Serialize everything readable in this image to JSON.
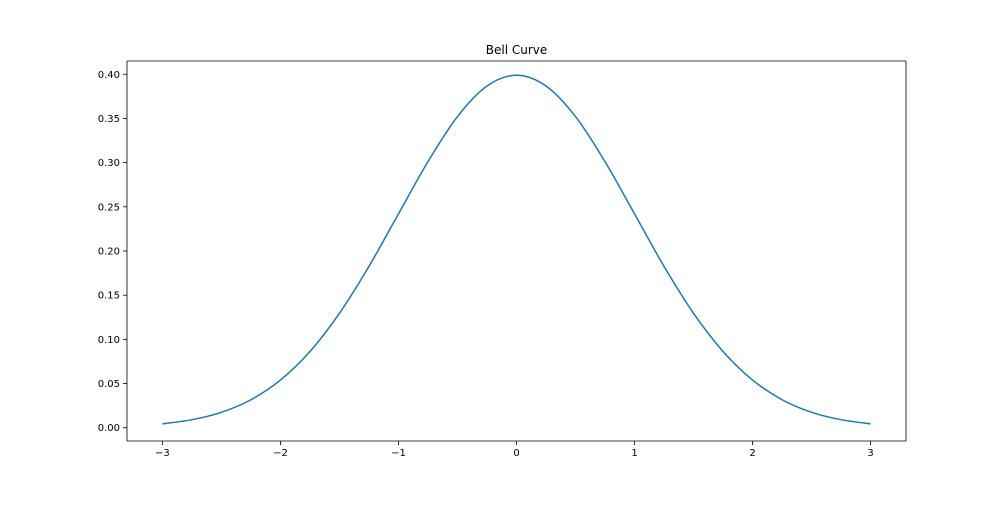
{
  "chart_data": {
    "type": "line",
    "title": "Bell Curve",
    "xlabel": "",
    "ylabel": "",
    "xlim": [
      -3.3,
      3.3
    ],
    "ylim": [
      -0.015,
      0.415
    ],
    "x_ticks": [
      -3,
      -2,
      -1,
      0,
      1,
      2,
      3
    ],
    "x_tick_labels": [
      "−3",
      "−2",
      "−1",
      "0",
      "1",
      "2",
      "3"
    ],
    "y_ticks": [
      0.0,
      0.05,
      0.1,
      0.15,
      0.2,
      0.25,
      0.3,
      0.35,
      0.4
    ],
    "y_tick_labels": [
      "0.00",
      "0.05",
      "0.10",
      "0.15",
      "0.20",
      "0.25",
      "0.30",
      "0.35",
      "0.40"
    ],
    "grid": false,
    "legend": "none",
    "series": [
      {
        "color": "#1f77b4",
        "x": [
          -3.0,
          -2.75,
          -2.5,
          -2.25,
          -2.0,
          -1.75,
          -1.5,
          -1.25,
          -1.0,
          -0.75,
          -0.5,
          -0.25,
          0.0,
          0.25,
          0.5,
          0.75,
          1.0,
          1.25,
          1.5,
          1.75,
          2.0,
          2.25,
          2.5,
          2.75,
          3.0
        ],
        "y": [
          0.0044,
          0.0091,
          0.0175,
          0.0317,
          0.054,
          0.0863,
          0.1295,
          0.1826,
          0.242,
          0.3011,
          0.3521,
          0.3867,
          0.3989,
          0.3867,
          0.3521,
          0.3011,
          0.242,
          0.1826,
          0.1295,
          0.0863,
          0.054,
          0.0317,
          0.0175,
          0.0091,
          0.0044
        ]
      }
    ]
  }
}
